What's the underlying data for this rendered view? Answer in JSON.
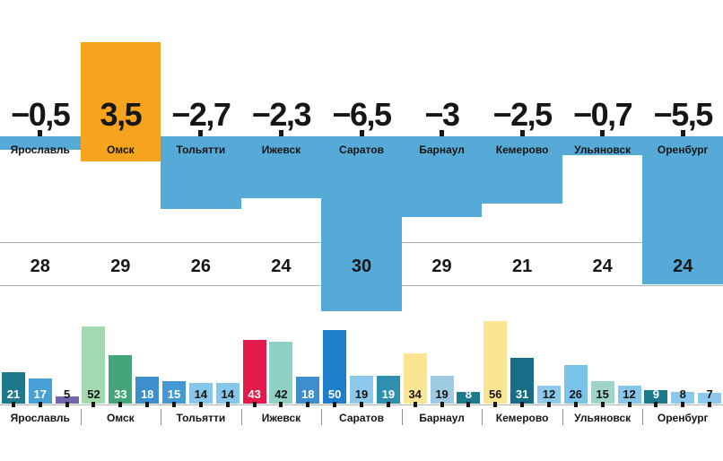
{
  "chart_data": [
    {
      "type": "bar",
      "title": "",
      "categories": [
        "Ярославль",
        "Омск",
        "Тольятти",
        "Ижевск",
        "Саратов",
        "Барнаул",
        "Кемерово",
        "Ульяновск",
        "Оренбург"
      ],
      "series": [
        {
          "name": "main-values",
          "values": [
            -0.5,
            3.5,
            -2.7,
            -2.3,
            -6.5,
            -3,
            -2.5,
            -0.7,
            -5.5
          ],
          "labels": [
            "−0,5",
            "3,5",
            "−2,7",
            "−2,3",
            "−6,5",
            "−3",
            "−2,5",
            "−0,7",
            "−5,5"
          ]
        },
        {
          "name": "table-row-values",
          "values": [
            28,
            29,
            26,
            24,
            30,
            29,
            21,
            24,
            24
          ],
          "labels": [
            "28",
            "29",
            "26",
            "24",
            "30",
            "29",
            "21",
            "24",
            "24"
          ]
        }
      ],
      "colors": {
        "positive": "#f6a41e",
        "negative": "#55aad8"
      },
      "layout": {
        "orientation": "diverging-vertical",
        "zero_line": true,
        "grid": false,
        "legend": "none"
      }
    },
    {
      "type": "bar",
      "title": "",
      "categories": [
        "Ярославль",
        "Омск",
        "Тольятти",
        "Ижевск",
        "Саратов",
        "Барнаул",
        "Кемерово",
        "Ульяновск",
        "Оренбург"
      ],
      "bars": [
        {
          "group": "Ярославль",
          "value": 21,
          "label": "21",
          "color": "#1d7a8c",
          "text_color": "#ffffff"
        },
        {
          "group": "Ярославль",
          "value": 17,
          "label": "17",
          "color": "#47a0d6",
          "text_color": "#ffffff"
        },
        {
          "group": "Ярославль",
          "value": 5,
          "label": "5",
          "color": "#7266ae",
          "text_color": "#161616"
        },
        {
          "group": "Омск",
          "value": 52,
          "label": "52",
          "color": "#a3d9b1",
          "text_color": "#161616"
        },
        {
          "group": "Омск",
          "value": 33,
          "label": "33",
          "color": "#44a678",
          "text_color": "#ffffff"
        },
        {
          "group": "Омск",
          "value": 18,
          "label": "18",
          "color": "#3c8ecd",
          "text_color": "#ffffff"
        },
        {
          "group": "Тольятти",
          "value": 15,
          "label": "15",
          "color": "#4498d4",
          "text_color": "#ffffff"
        },
        {
          "group": "Тольятти",
          "value": 14,
          "label": "14",
          "color": "#85c6ea",
          "text_color": "#161616"
        },
        {
          "group": "Тольятти",
          "value": 14,
          "label": "14",
          "color": "#85c6ea",
          "text_color": "#161616"
        },
        {
          "group": "Ижевск",
          "value": 43,
          "label": "43",
          "color": "#e51a4c",
          "text_color": "#ffffff"
        },
        {
          "group": "Ижевск",
          "value": 42,
          "label": "42",
          "color": "#8fd2c3",
          "text_color": "#161616"
        },
        {
          "group": "Ижевск",
          "value": 18,
          "label": "18",
          "color": "#3c8ecd",
          "text_color": "#ffffff"
        },
        {
          "group": "Саратов",
          "value": 50,
          "label": "50",
          "color": "#1e7ecb",
          "text_color": "#ffffff"
        },
        {
          "group": "Саратов",
          "value": 19,
          "label": "19",
          "color": "#8cc9ec",
          "text_color": "#161616"
        },
        {
          "group": "Саратов",
          "value": 19,
          "label": "19",
          "color": "#2e8fae",
          "text_color": "#ffffff"
        },
        {
          "group": "Барнаул",
          "value": 34,
          "label": "34",
          "color": "#fbe592",
          "text_color": "#161616"
        },
        {
          "group": "Барнаул",
          "value": 19,
          "label": "19",
          "color": "#9ecbe2",
          "text_color": "#161616"
        },
        {
          "group": "Барнаул",
          "value": 8,
          "label": "8",
          "color": "#1d7a8c",
          "text_color": "#ffffff"
        },
        {
          "group": "Кемерово",
          "value": 56,
          "label": "56",
          "color": "#fbe592",
          "text_color": "#161616"
        },
        {
          "group": "Кемерово",
          "value": 31,
          "label": "31",
          "color": "#176e86",
          "text_color": "#ffffff"
        },
        {
          "group": "Кемерово",
          "value": 12,
          "label": "12",
          "color": "#8cc9ec",
          "text_color": "#161616"
        },
        {
          "group": "Ульяновск",
          "value": 26,
          "label": "26",
          "color": "#79c3e8",
          "text_color": "#161616"
        },
        {
          "group": "Ульяновск",
          "value": 15,
          "label": "15",
          "color": "#9fd4c9",
          "text_color": "#161616"
        },
        {
          "group": "Ульяновск",
          "value": 12,
          "label": "12",
          "color": "#85c6ea",
          "text_color": "#161616"
        },
        {
          "group": "Оренбург",
          "value": 9,
          "label": "9",
          "color": "#1d7a8c",
          "text_color": "#ffffff"
        },
        {
          "group": "Оренбург",
          "value": 8,
          "label": "8",
          "color": "#8cc9ec",
          "text_color": "#161616"
        },
        {
          "group": "Оренбург",
          "value": 7,
          "label": "7",
          "color": "#8cc9ec",
          "text_color": "#161616"
        }
      ],
      "layout": {
        "orientation": "vertical",
        "grid": false,
        "legend": "none",
        "value_labels": "inside-bottom"
      }
    }
  ]
}
